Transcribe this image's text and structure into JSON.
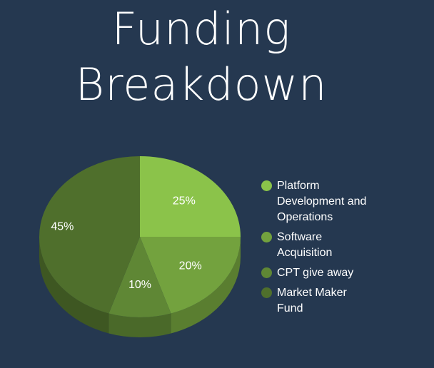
{
  "title": "Funding Breakdown",
  "chart_data": {
    "type": "pie",
    "title": "Funding Breakdown",
    "categories": [
      "Platform Development and Operations",
      "Software Acquisition",
      "CPT give away",
      "Market Maker Fund"
    ],
    "values": [
      25,
      20,
      10,
      45
    ],
    "data_labels": [
      "25%",
      "20%",
      "10%",
      "45%"
    ],
    "colors": [
      "#8bc34a",
      "#73a23e",
      "#5f8735",
      "#4f6f2c"
    ],
    "legend_position": "right",
    "style": "3d"
  }
}
